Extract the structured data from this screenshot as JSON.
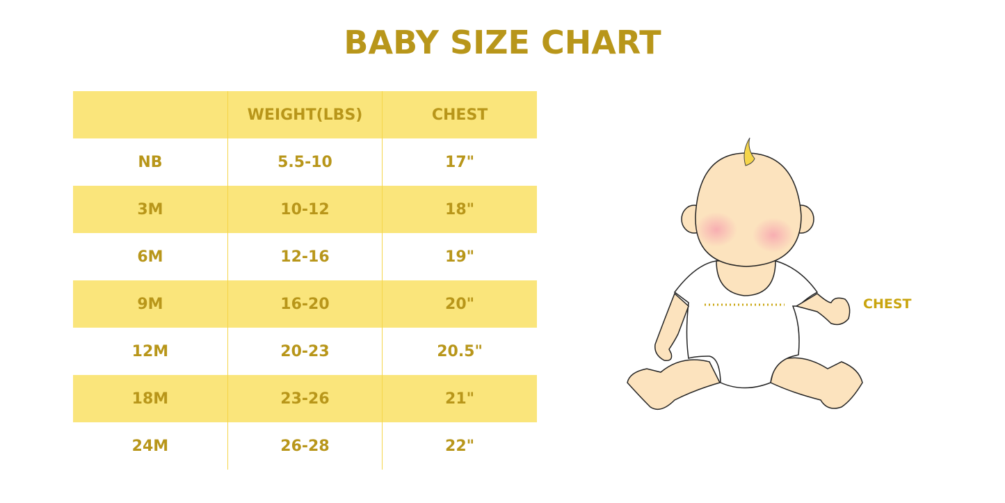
{
  "title": "BABY SIZE CHART",
  "table": {
    "headers": [
      "",
      "WEIGHT(LBS)",
      "CHEST"
    ],
    "rows": [
      [
        "NB",
        "5.5-10",
        "17\""
      ],
      [
        "3M",
        "10-12",
        "18\""
      ],
      [
        "6M",
        "12-16",
        "19\""
      ],
      [
        "9M",
        "16-20",
        "20\""
      ],
      [
        "12M",
        "20-23",
        "20.5\""
      ],
      [
        "18M",
        "23-26",
        "21\""
      ],
      [
        "24M",
        "26-28",
        "22\""
      ]
    ]
  },
  "illustration": {
    "chest_label": "CHEST"
  },
  "colors": {
    "accent": "#B8961A",
    "row_highlight": "#FAE57B",
    "skin": "#FCE3BE"
  }
}
